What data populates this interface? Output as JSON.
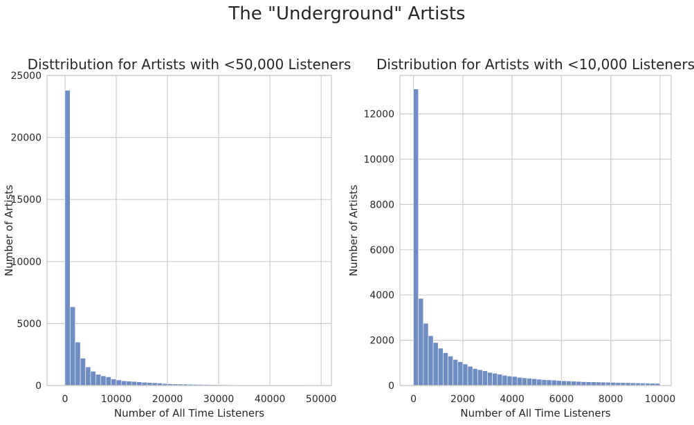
{
  "figure": {
    "title": "The \"Underground\" Artists"
  },
  "chart_data": [
    {
      "type": "bar",
      "title": "Disttribution for Artists with <50,000 Listeners",
      "xlabel": "Number of All Time Listeners",
      "ylabel": "Number of Artists",
      "xlim": [
        -3500,
        52000
      ],
      "ylim": [
        0,
        25000
      ],
      "xticks": [
        0,
        10000,
        20000,
        30000,
        40000,
        50000
      ],
      "yticks": [
        0,
        5000,
        10000,
        15000,
        20000,
        25000
      ],
      "bin_start": 0,
      "bin_width": 1000,
      "values": [
        23800,
        6350,
        3500,
        2200,
        1500,
        1150,
        900,
        780,
        700,
        530,
        450,
        380,
        350,
        330,
        300,
        260,
        240,
        220,
        200,
        160,
        140,
        130,
        120,
        110,
        100,
        90,
        85,
        80,
        75,
        70,
        65,
        60,
        55,
        50,
        45,
        42,
        40,
        38,
        36,
        34,
        32,
        30,
        28,
        26,
        25,
        24,
        22,
        21,
        20,
        20
      ],
      "grid": true,
      "color": "#6f8dc3"
    },
    {
      "type": "bar",
      "title": "Distribution for Artists with <10,000 Listeners",
      "xlabel": "Number of All Time Listeners",
      "ylabel": "Number of Artists",
      "xlim": [
        -550,
        10450
      ],
      "ylim": [
        0,
        13700
      ],
      "xticks": [
        0,
        2000,
        4000,
        6000,
        8000,
        10000
      ],
      "yticks": [
        0,
        2000,
        4000,
        6000,
        8000,
        10000,
        12000
      ],
      "bin_start": 0,
      "bin_width": 200,
      "values": [
        13100,
        3850,
        2750,
        2200,
        1900,
        1650,
        1450,
        1300,
        1150,
        1050,
        950,
        850,
        750,
        700,
        650,
        580,
        540,
        500,
        450,
        420,
        400,
        360,
        340,
        320,
        300,
        280,
        260,
        250,
        240,
        220,
        210,
        200,
        190,
        180,
        170,
        165,
        160,
        155,
        150,
        145,
        140,
        135,
        130,
        125,
        120,
        115,
        110,
        105,
        100,
        95
      ],
      "grid": true,
      "color": "#6f8dc3"
    }
  ]
}
